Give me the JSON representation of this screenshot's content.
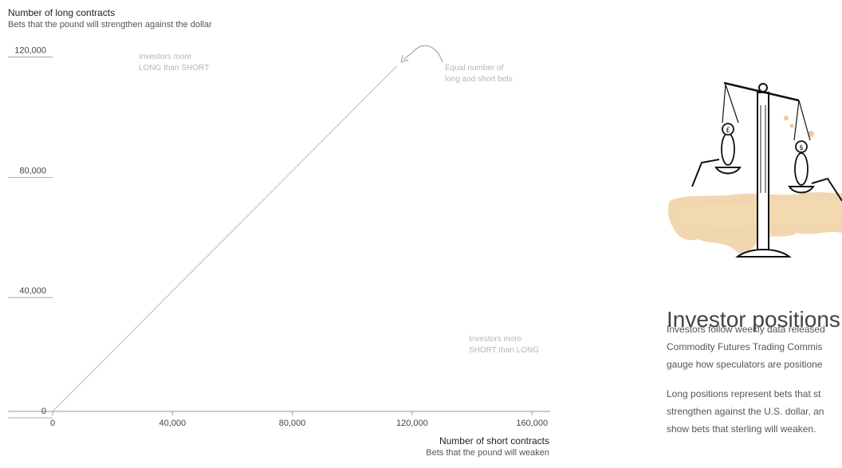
{
  "chart_data": {
    "type": "line",
    "title": "",
    "ylabel": "Number of long contracts",
    "ylabel_sub": "Bets that the pound will strengthen against the dollar",
    "xlabel": "Number of short contracts",
    "xlabel_sub": "Bets that the pound will weaken",
    "xlim": [
      0,
      165000
    ],
    "ylim": [
      0,
      122000
    ],
    "x_ticks": [
      0,
      40000,
      80000,
      120000,
      160000
    ],
    "x_tick_labels": [
      "0",
      "40,000",
      "80,000",
      "120,000",
      "160,000"
    ],
    "y_ticks": [
      0,
      40000,
      80000,
      120000
    ],
    "y_tick_labels": [
      "0",
      "40,000",
      "80,000",
      "120,000"
    ],
    "grid": false,
    "series": [
      {
        "x": [
          0,
          115000
        ],
        "y": [
          0,
          115000
        ]
      }
    ],
    "annotations": [
      {
        "lines": [
          "Investors more",
          "LONG than SHORT"
        ]
      },
      {
        "lines": [
          "Equal number of",
          "long and short bets"
        ]
      },
      {
        "lines": [
          "Investors more",
          "SHORT than LONG"
        ]
      }
    ],
    "colors": {
      "line": "#c4c4c4",
      "axis": "#999999",
      "annotation": "#b5b5b5"
    }
  },
  "panel": {
    "title": "Investor positions",
    "paragraph1": [
      "Investors follow weekly data released",
      "Commodity Futures Trading Commis",
      "gauge how speculators are positione"
    ],
    "paragraph2": [
      "Long positions represent bets that st",
      "strengthen against the U.S. dollar, an",
      "show bets that sterling will weaken."
    ],
    "illustration": "balance-scale-illustration"
  }
}
